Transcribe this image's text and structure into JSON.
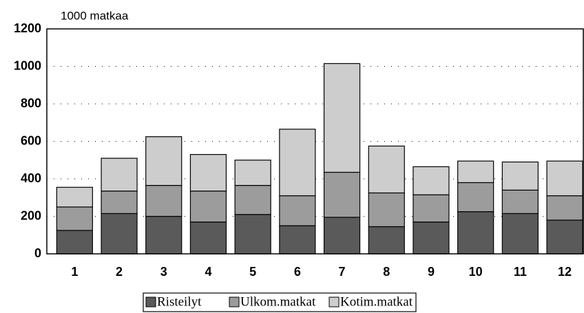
{
  "chart_data": {
    "type": "stacked-bar",
    "y_axis_label": "1000 matkaa",
    "categories": [
      "1",
      "2",
      "3",
      "4",
      "5",
      "6",
      "7",
      "8",
      "9",
      "10",
      "11",
      "12"
    ],
    "series": [
      {
        "name": "Risteilyt",
        "color": "#5a5a5a",
        "values": [
          125,
          215,
          200,
          170,
          210,
          150,
          195,
          145,
          170,
          225,
          215,
          180
        ]
      },
      {
        "name": "Ulkom.matkat",
        "color": "#9c9c9c",
        "values": [
          125,
          120,
          165,
          165,
          155,
          160,
          240,
          180,
          145,
          155,
          125,
          130
        ]
      },
      {
        "name": "Kotim.matkat",
        "color": "#cdcdcd",
        "values": [
          105,
          175,
          260,
          195,
          135,
          355,
          580,
          250,
          150,
          115,
          150,
          185
        ]
      }
    ],
    "ylim": [
      0,
      1200
    ],
    "yticks": [
      0,
      200,
      400,
      600,
      800,
      1000,
      1200
    ],
    "grid": true,
    "legend": "bottom"
  }
}
